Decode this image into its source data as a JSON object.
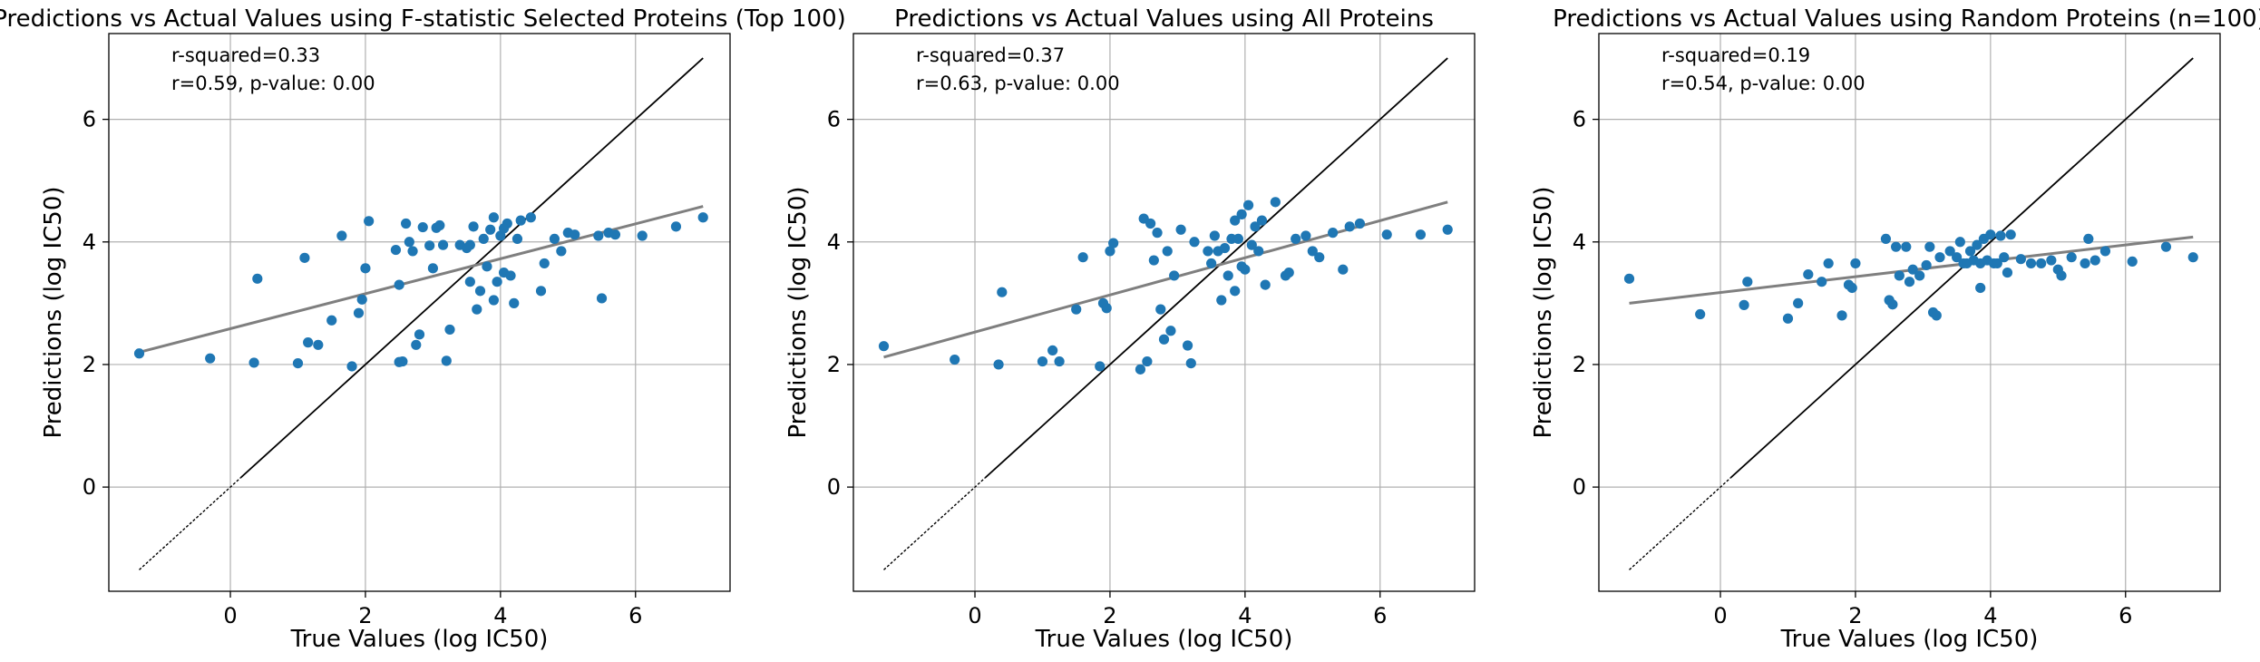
{
  "chart_data": [
    {
      "type": "scatter",
      "title": "Predictions vs Actual Values using F-statistic Selected Proteins (Top 100)",
      "xlabel": "True Values (log IC50)",
      "ylabel": "Predictions (log IC50)",
      "xlim": [
        -1.8,
        7.4
      ],
      "ylim": [
        -1.7,
        7.4
      ],
      "xticks": [
        0,
        2,
        4,
        6
      ],
      "yticks": [
        0,
        2,
        4,
        6
      ],
      "grid": true,
      "annotations": [
        "r-squared=0.33",
        "r=0.59, p-value: 0.00"
      ],
      "identity_line": {
        "x": [
          -1.35,
          7.0
        ],
        "y": [
          -1.35,
          7.0
        ]
      },
      "fit_line": {
        "x": [
          -1.35,
          7.0
        ],
        "y": [
          2.2,
          4.58
        ]
      },
      "points": {
        "x": [
          -1.35,
          -0.3,
          0.35,
          0.4,
          1.0,
          1.1,
          1.15,
          1.3,
          1.5,
          1.65,
          1.8,
          1.9,
          1.95,
          2.0,
          2.05,
          2.45,
          2.5,
          2.55,
          2.6,
          2.65,
          2.7,
          2.75,
          2.8,
          2.85,
          2.95,
          3.0,
          3.05,
          3.1,
          3.2,
          3.25,
          3.4,
          3.5,
          3.55,
          3.6,
          3.65,
          3.7,
          3.75,
          3.8,
          3.85,
          3.9,
          3.95,
          4.0,
          4.05,
          4.1,
          4.15,
          4.2,
          4.25,
          4.3,
          4.45,
          4.6,
          4.65,
          4.8,
          4.9,
          5.0,
          5.1,
          5.45,
          5.5,
          5.6,
          5.7,
          6.1,
          6.6,
          7.0,
          3.9,
          4.05,
          3.55,
          3.15,
          2.5
        ],
        "y": [
          2.18,
          2.1,
          2.03,
          3.4,
          2.02,
          3.74,
          2.36,
          2.32,
          2.72,
          4.1,
          1.97,
          2.84,
          3.06,
          3.57,
          4.34,
          3.87,
          2.04,
          2.05,
          4.3,
          4.0,
          3.85,
          2.32,
          2.49,
          4.24,
          3.94,
          3.57,
          4.23,
          4.27,
          2.06,
          2.57,
          3.95,
          3.9,
          3.35,
          4.25,
          2.9,
          3.2,
          4.05,
          3.6,
          4.2,
          3.05,
          3.35,
          4.1,
          3.5,
          4.3,
          3.45,
          3.0,
          4.05,
          4.35,
          4.4,
          3.2,
          3.65,
          4.05,
          3.85,
          4.15,
          4.12,
          4.1,
          3.08,
          4.15,
          4.12,
          4.1,
          4.25,
          4.4,
          4.4,
          4.22,
          3.95,
          3.95,
          3.3
        ]
      }
    },
    {
      "type": "scatter",
      "title": "Predictions vs Actual Values using All Proteins",
      "xlabel": "True Values (log IC50)",
      "ylabel": "Predictions (log IC50)",
      "xlim": [
        -1.8,
        7.4
      ],
      "ylim": [
        -1.7,
        7.4
      ],
      "xticks": [
        0,
        2,
        4,
        6
      ],
      "yticks": [
        0,
        2,
        4,
        6
      ],
      "grid": true,
      "annotations": [
        "r-squared=0.37",
        "r=0.63, p-value: 0.00"
      ],
      "identity_line": {
        "x": [
          -1.35,
          7.0
        ],
        "y": [
          -1.35,
          7.0
        ]
      },
      "fit_line": {
        "x": [
          -1.35,
          7.0
        ],
        "y": [
          2.12,
          4.65
        ]
      },
      "points": {
        "x": [
          -1.35,
          -0.3,
          0.35,
          0.4,
          1.0,
          1.15,
          1.25,
          1.5,
          1.6,
          1.85,
          1.9,
          1.95,
          2.0,
          2.05,
          2.5,
          2.55,
          2.6,
          2.65,
          2.7,
          2.75,
          2.8,
          2.85,
          2.95,
          3.05,
          3.15,
          3.2,
          3.25,
          3.45,
          3.5,
          3.55,
          3.6,
          3.65,
          3.7,
          3.75,
          3.8,
          3.85,
          3.9,
          3.95,
          4.0,
          4.05,
          4.1,
          4.15,
          4.2,
          4.25,
          4.3,
          4.45,
          4.6,
          4.65,
          4.75,
          4.9,
          5.0,
          5.1,
          5.3,
          5.45,
          5.55,
          5.7,
          6.1,
          6.6,
          7.0,
          2.45,
          2.9,
          3.85,
          3.95
        ],
        "y": [
          2.3,
          2.08,
          2.0,
          3.18,
          2.05,
          2.23,
          2.05,
          2.9,
          3.75,
          1.97,
          3.0,
          2.92,
          3.85,
          3.98,
          4.38,
          2.05,
          4.3,
          3.7,
          4.15,
          2.9,
          2.41,
          3.85,
          3.45,
          4.2,
          2.31,
          2.02,
          4.0,
          3.85,
          3.65,
          4.1,
          3.85,
          3.05,
          3.9,
          3.45,
          4.05,
          4.35,
          4.05,
          4.45,
          3.55,
          4.6,
          3.95,
          4.25,
          3.85,
          4.35,
          3.3,
          4.65,
          3.45,
          3.5,
          4.05,
          4.1,
          3.85,
          3.75,
          4.15,
          3.55,
          4.25,
          4.3,
          4.12,
          4.12,
          4.2,
          1.92,
          2.55,
          3.2,
          3.6
        ]
      }
    },
    {
      "type": "scatter",
      "title": "Predictions vs Actual Values using Random Proteins (n=100)",
      "xlabel": "True Values (log IC50)",
      "ylabel": "Predictions (log IC50)",
      "xlim": [
        -1.8,
        7.4
      ],
      "ylim": [
        -1.7,
        7.4
      ],
      "xticks": [
        0,
        2,
        4,
        6
      ],
      "yticks": [
        0,
        2,
        4,
        6
      ],
      "grid": true,
      "annotations": [
        "r-squared=0.19",
        "r=0.54, p-value: 0.00"
      ],
      "identity_line": {
        "x": [
          -1.35,
          7.0
        ],
        "y": [
          -1.35,
          7.0
        ]
      },
      "fit_line": {
        "x": [
          -1.35,
          7.0
        ],
        "y": [
          3.0,
          4.08
        ]
      },
      "points": {
        "x": [
          -1.35,
          -0.3,
          0.35,
          0.4,
          1.0,
          1.15,
          1.3,
          1.5,
          1.6,
          1.8,
          1.9,
          1.95,
          2.0,
          2.45,
          2.5,
          2.55,
          2.6,
          2.65,
          2.75,
          2.8,
          2.85,
          2.95,
          3.05,
          3.1,
          3.15,
          3.25,
          3.4,
          3.5,
          3.55,
          3.6,
          3.65,
          3.7,
          3.75,
          3.8,
          3.85,
          3.9,
          3.95,
          4.0,
          4.05,
          4.1,
          4.15,
          4.2,
          4.25,
          4.3,
          4.45,
          4.6,
          4.75,
          4.9,
          5.0,
          5.05,
          5.2,
          5.4,
          5.45,
          5.55,
          5.7,
          6.1,
          6.6,
          7.0,
          3.2,
          3.85
        ],
        "y": [
          3.4,
          2.82,
          2.97,
          3.35,
          2.75,
          3.0,
          3.47,
          3.35,
          3.65,
          2.8,
          3.3,
          3.25,
          3.65,
          4.05,
          3.05,
          2.98,
          3.92,
          3.45,
          3.92,
          3.35,
          3.55,
          3.45,
          3.62,
          3.92,
          2.85,
          3.75,
          3.85,
          3.75,
          4.0,
          3.65,
          3.65,
          3.85,
          3.7,
          3.95,
          3.65,
          4.05,
          3.7,
          4.12,
          3.65,
          3.65,
          4.1,
          3.75,
          3.5,
          4.12,
          3.72,
          3.65,
          3.65,
          3.7,
          3.55,
          3.45,
          3.75,
          3.65,
          4.05,
          3.7,
          3.85,
          3.68,
          3.92,
          3.75,
          2.8,
          3.25
        ]
      }
    }
  ]
}
